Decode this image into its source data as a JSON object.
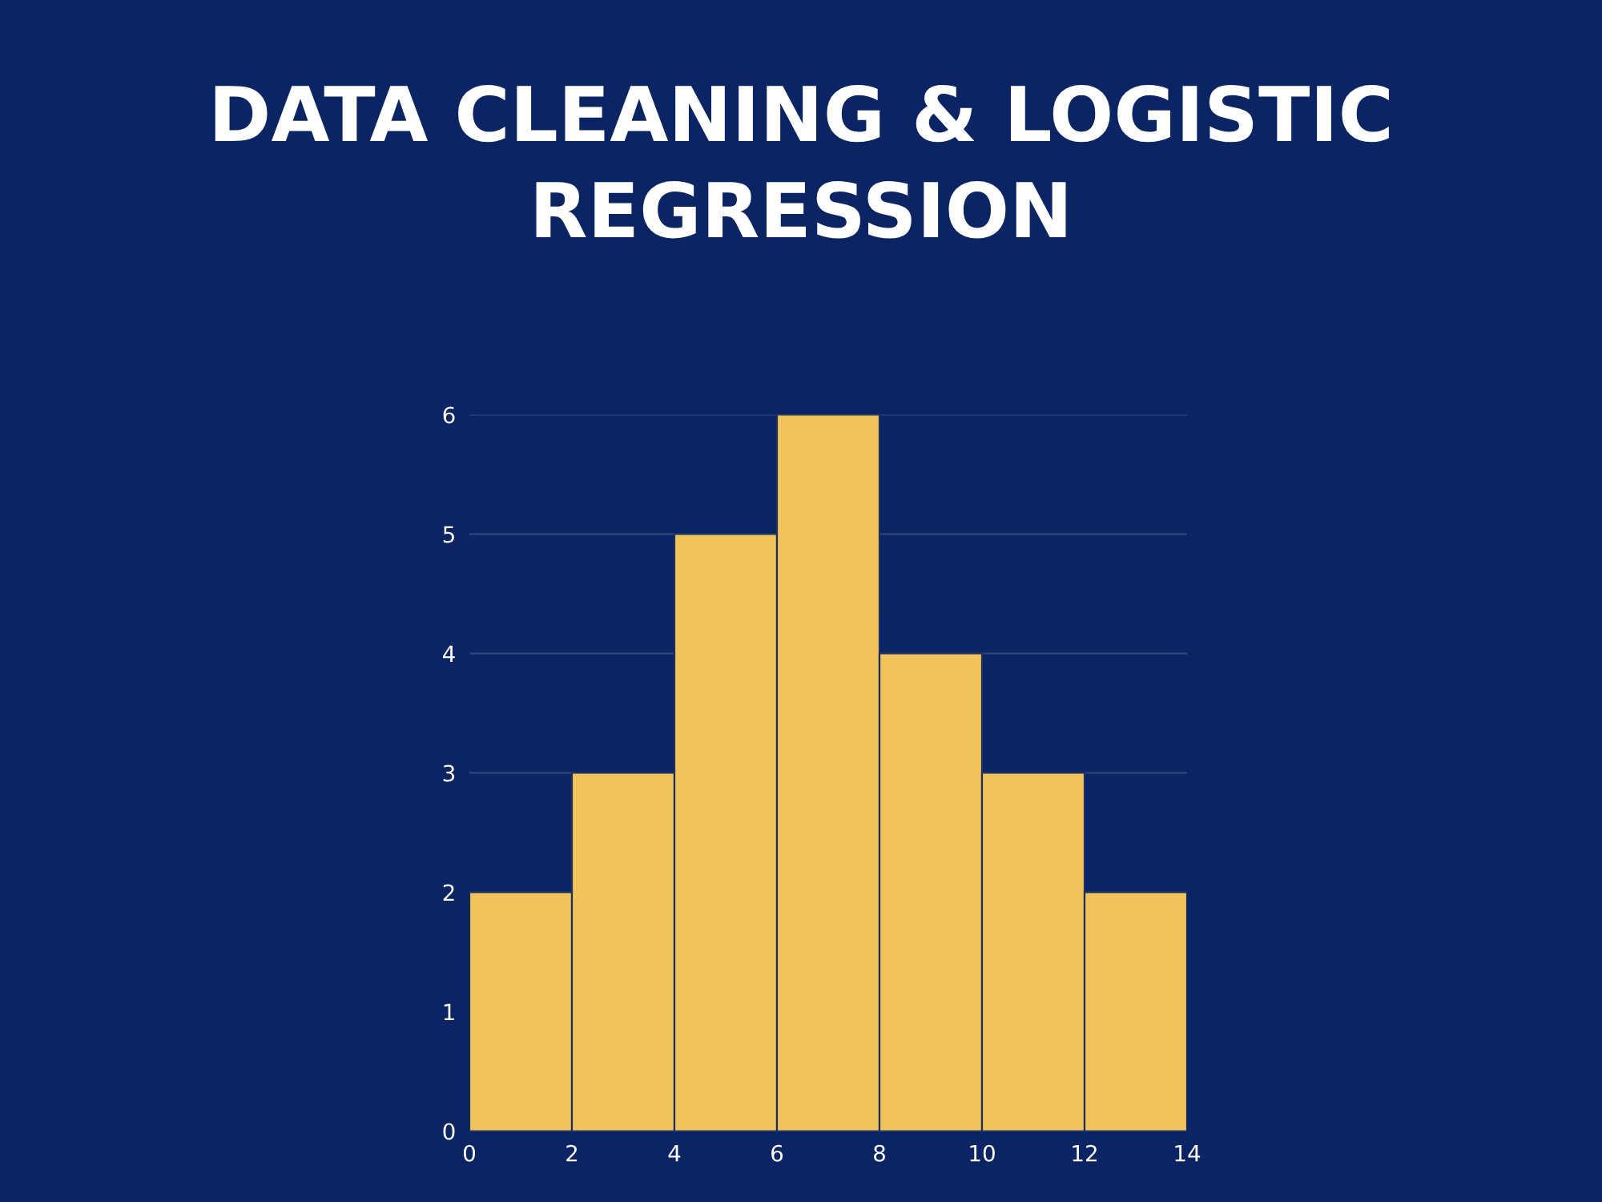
{
  "chart_data": {
    "type": "histogram",
    "title": "DATA CLEANING & LOGISTIC REGRESSION",
    "bins": [
      0,
      2,
      4,
      6,
      8,
      10,
      12,
      14
    ],
    "values": [
      2,
      3,
      5,
      6,
      4,
      3,
      2
    ],
    "color": "#f0c35c",
    "xlim": [
      0,
      14
    ],
    "xticks": [
      0,
      2,
      4,
      6,
      8,
      10,
      12,
      14
    ],
    "ylim": [
      0,
      6
    ],
    "yticks": [
      0,
      1,
      2,
      3,
      4,
      5,
      6
    ],
    "grid": "y"
  }
}
